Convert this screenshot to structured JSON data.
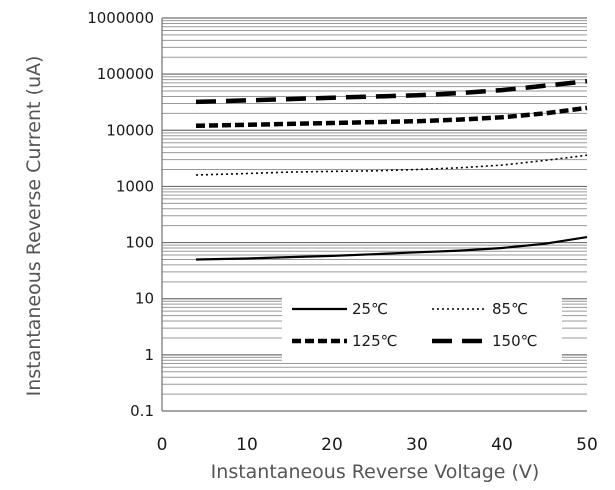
{
  "chart_data": {
    "type": "line",
    "title": "",
    "xlabel": "Instantaneous Reverse Voltage (V)",
    "ylabel": "Instantaneous Reverse Current (uA)",
    "xlim": [
      0,
      50
    ],
    "ylim": [
      0.1,
      1000000
    ],
    "yscale": "log",
    "grid": true,
    "legend_position": "bottom-right",
    "xticks": [
      0,
      10,
      20,
      30,
      40,
      50
    ],
    "xtick_labels": [
      "0",
      "10",
      "20",
      "30",
      "40",
      "50"
    ],
    "yticks": [
      0.1,
      1,
      10,
      100,
      1000,
      10000,
      100000,
      1000000
    ],
    "ytick_labels": [
      "0.1",
      "1",
      "10",
      "100",
      "1000",
      "10000",
      "100000",
      "1000000"
    ],
    "x": [
      4,
      10,
      15,
      20,
      25,
      30,
      35,
      40,
      45,
      50
    ],
    "series": [
      {
        "name": "25℃",
        "style": "solid",
        "color": "#000000",
        "values": [
          50,
          52,
          55,
          58,
          62,
          67,
          72,
          80,
          95,
          125
        ]
      },
      {
        "name": "85℃",
        "style": "dotted",
        "color": "#000000",
        "values": [
          1600,
          1700,
          1800,
          1850,
          1900,
          2000,
          2150,
          2400,
          2900,
          3600
        ]
      },
      {
        "name": "125℃",
        "style": "dashed",
        "color": "#000000",
        "values": [
          12000,
          12500,
          13000,
          13500,
          14000,
          14500,
          15500,
          17000,
          20000,
          25000
        ]
      },
      {
        "name": "150℃",
        "style": "longdash",
        "color": "#000000",
        "values": [
          32000,
          34000,
          36000,
          38000,
          40000,
          42000,
          46000,
          52000,
          62000,
          75000
        ]
      }
    ]
  }
}
